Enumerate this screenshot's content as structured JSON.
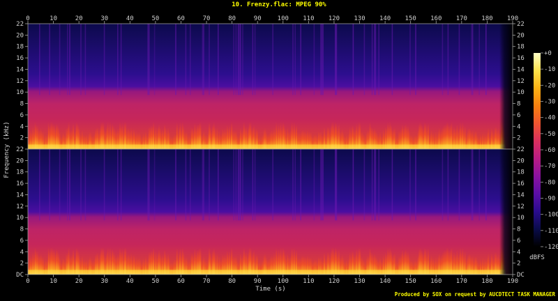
{
  "title": "10. Frenzy.flac: MPEG 90%",
  "credit": "Produced by SOX on request by AUCDTECT TASK MANAGER",
  "colors": {
    "background": "#000000",
    "text": "#d0d0d0",
    "title": "#ffff00",
    "ticks": "#cfcfcf"
  },
  "chart_data": {
    "type": "heatmap",
    "xlabel": "Time (s)",
    "ylabel": "Frequency (kHz)",
    "x_ticks": [
      0,
      10,
      20,
      30,
      40,
      50,
      60,
      70,
      80,
      90,
      100,
      110,
      120,
      130,
      140,
      150,
      160,
      170,
      180,
      190
    ],
    "xlim": [
      0,
      190
    ],
    "audio_end_s": 187,
    "channels": [
      {
        "y_ticks": [
          "22",
          "20",
          "18",
          "16",
          "14",
          "12",
          "10",
          "8",
          "6",
          "4",
          "2"
        ],
        "ylim": [
          0,
          22
        ]
      },
      {
        "y_ticks": [
          "22",
          "20",
          "18",
          "16",
          "14",
          "12",
          "10",
          "8",
          "6",
          "4",
          "2",
          "DC"
        ],
        "ylim": [
          0,
          22
        ]
      }
    ],
    "energy_cutoff_khz": 9.5,
    "colorbar": {
      "label": "dBFS",
      "ticks": [
        "+0",
        "-10",
        "-20",
        "-30",
        "-40",
        "-50",
        "-60",
        "-70",
        "-80",
        "-90",
        "-100",
        "-110",
        "-120"
      ],
      "range": [
        -120,
        0
      ],
      "colors": [
        "#000000",
        "#0a0c4a",
        "#2a0c8e",
        "#5b0ea6",
        "#8b12a0",
        "#b81c84",
        "#d9305e",
        "#ee5530",
        "#f7800f",
        "#fbb114",
        "#fde24a",
        "#ffffc8"
      ]
    }
  }
}
